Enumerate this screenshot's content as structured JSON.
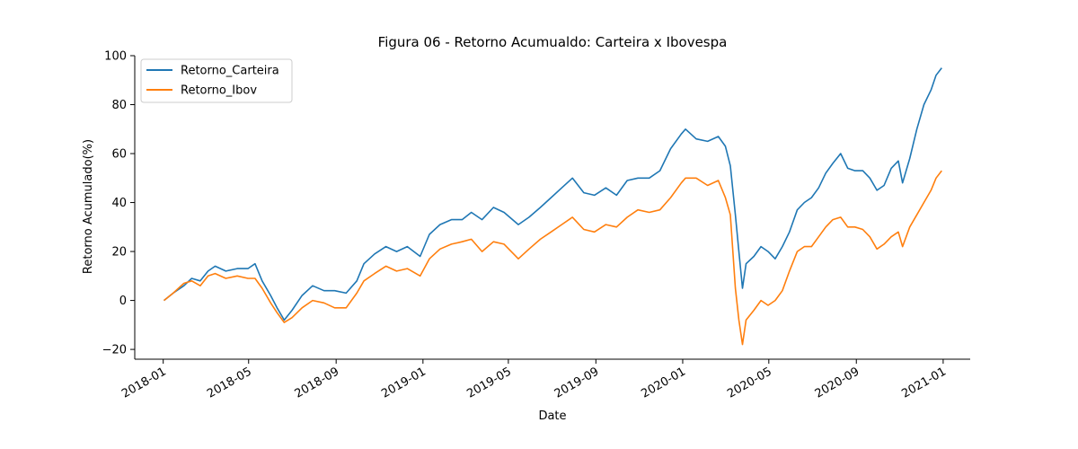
{
  "chart_data": {
    "type": "line",
    "title": "Figura 06 - Retorno Acumualdo: Carteira x Ibovespa",
    "xlabel": "Date",
    "ylabel": "Retorno Acumulado(%)",
    "xlim": [
      "2017-11-22",
      "2021-02-08"
    ],
    "ylim": [
      -24,
      100
    ],
    "xticks": [
      "2018-01",
      "2018-05",
      "2018-09",
      "2019-01",
      "2019-05",
      "2019-09",
      "2020-01",
      "2020-05",
      "2020-09",
      "2021-01"
    ],
    "yticks": [
      -20,
      0,
      20,
      40,
      60,
      80,
      100
    ],
    "grid": false,
    "legend": "top-left",
    "series": [
      {
        "name": "Retorno_Carteira",
        "color": "#1f77b4",
        "points": [
          [
            "2018-01-02",
            0
          ],
          [
            "2018-01-15",
            3
          ],
          [
            "2018-01-30",
            6
          ],
          [
            "2018-02-10",
            9
          ],
          [
            "2018-02-22",
            8
          ],
          [
            "2018-03-05",
            12
          ],
          [
            "2018-03-15",
            14
          ],
          [
            "2018-03-30",
            12
          ],
          [
            "2018-04-15",
            13
          ],
          [
            "2018-04-30",
            13
          ],
          [
            "2018-05-10",
            15
          ],
          [
            "2018-05-20",
            8
          ],
          [
            "2018-06-01",
            2
          ],
          [
            "2018-06-10",
            -3
          ],
          [
            "2018-06-20",
            -8
          ],
          [
            "2018-07-01",
            -4
          ],
          [
            "2018-07-15",
            2
          ],
          [
            "2018-07-30",
            6
          ],
          [
            "2018-08-15",
            4
          ],
          [
            "2018-08-30",
            4
          ],
          [
            "2018-09-15",
            3
          ],
          [
            "2018-09-30",
            8
          ],
          [
            "2018-10-10",
            15
          ],
          [
            "2018-10-25",
            19
          ],
          [
            "2018-11-10",
            22
          ],
          [
            "2018-11-25",
            20
          ],
          [
            "2018-12-10",
            22
          ],
          [
            "2018-12-28",
            18
          ],
          [
            "2019-01-10",
            27
          ],
          [
            "2019-01-25",
            31
          ],
          [
            "2019-02-10",
            33
          ],
          [
            "2019-02-25",
            33
          ],
          [
            "2019-03-10",
            36
          ],
          [
            "2019-03-25",
            33
          ],
          [
            "2019-04-10",
            38
          ],
          [
            "2019-04-25",
            36
          ],
          [
            "2019-05-15",
            31
          ],
          [
            "2019-05-30",
            34
          ],
          [
            "2019-06-15",
            38
          ],
          [
            "2019-06-30",
            42
          ],
          [
            "2019-07-15",
            46
          ],
          [
            "2019-07-30",
            50
          ],
          [
            "2019-08-15",
            44
          ],
          [
            "2019-08-30",
            43
          ],
          [
            "2019-09-15",
            46
          ],
          [
            "2019-09-30",
            43
          ],
          [
            "2019-10-15",
            49
          ],
          [
            "2019-10-30",
            50
          ],
          [
            "2019-11-15",
            50
          ],
          [
            "2019-11-30",
            53
          ],
          [
            "2019-12-15",
            62
          ],
          [
            "2019-12-30",
            68
          ],
          [
            "2020-01-05",
            70
          ],
          [
            "2020-01-20",
            66
          ],
          [
            "2020-02-05",
            65
          ],
          [
            "2020-02-20",
            67
          ],
          [
            "2020-03-01",
            63
          ],
          [
            "2020-03-08",
            55
          ],
          [
            "2020-03-15",
            35
          ],
          [
            "2020-03-20",
            20
          ],
          [
            "2020-03-25",
            5
          ],
          [
            "2020-03-30",
            15
          ],
          [
            "2020-04-10",
            18
          ],
          [
            "2020-04-20",
            22
          ],
          [
            "2020-04-30",
            20
          ],
          [
            "2020-05-10",
            17
          ],
          [
            "2020-05-20",
            22
          ],
          [
            "2020-05-30",
            28
          ],
          [
            "2020-06-10",
            37
          ],
          [
            "2020-06-20",
            40
          ],
          [
            "2020-06-30",
            42
          ],
          [
            "2020-07-10",
            46
          ],
          [
            "2020-07-20",
            52
          ],
          [
            "2020-07-30",
            56
          ],
          [
            "2020-08-10",
            60
          ],
          [
            "2020-08-20",
            54
          ],
          [
            "2020-08-30",
            53
          ],
          [
            "2020-09-10",
            53
          ],
          [
            "2020-09-20",
            50
          ],
          [
            "2020-09-30",
            45
          ],
          [
            "2020-10-10",
            47
          ],
          [
            "2020-10-20",
            54
          ],
          [
            "2020-10-30",
            57
          ],
          [
            "2020-11-05",
            48
          ],
          [
            "2020-11-15",
            58
          ],
          [
            "2020-11-25",
            70
          ],
          [
            "2020-12-05",
            80
          ],
          [
            "2020-12-15",
            86
          ],
          [
            "2020-12-22",
            92
          ],
          [
            "2020-12-30",
            95
          ]
        ]
      },
      {
        "name": "Retorno_Ibov",
        "color": "#ff7f0e",
        "points": [
          [
            "2018-01-02",
            0
          ],
          [
            "2018-01-15",
            3
          ],
          [
            "2018-01-30",
            7
          ],
          [
            "2018-02-10",
            8
          ],
          [
            "2018-02-22",
            6
          ],
          [
            "2018-03-05",
            10
          ],
          [
            "2018-03-15",
            11
          ],
          [
            "2018-03-30",
            9
          ],
          [
            "2018-04-15",
            10
          ],
          [
            "2018-04-30",
            9
          ],
          [
            "2018-05-10",
            9
          ],
          [
            "2018-05-20",
            5
          ],
          [
            "2018-06-01",
            -1
          ],
          [
            "2018-06-10",
            -5
          ],
          [
            "2018-06-20",
            -9
          ],
          [
            "2018-07-01",
            -7
          ],
          [
            "2018-07-15",
            -3
          ],
          [
            "2018-07-30",
            0
          ],
          [
            "2018-08-15",
            -1
          ],
          [
            "2018-08-30",
            -3
          ],
          [
            "2018-09-15",
            -3
          ],
          [
            "2018-09-30",
            3
          ],
          [
            "2018-10-10",
            8
          ],
          [
            "2018-10-25",
            11
          ],
          [
            "2018-11-10",
            14
          ],
          [
            "2018-11-25",
            12
          ],
          [
            "2018-12-10",
            13
          ],
          [
            "2018-12-28",
            10
          ],
          [
            "2019-01-10",
            17
          ],
          [
            "2019-01-25",
            21
          ],
          [
            "2019-02-10",
            23
          ],
          [
            "2019-02-25",
            24
          ],
          [
            "2019-03-10",
            25
          ],
          [
            "2019-03-25",
            20
          ],
          [
            "2019-04-10",
            24
          ],
          [
            "2019-04-25",
            23
          ],
          [
            "2019-05-15",
            17
          ],
          [
            "2019-05-30",
            21
          ],
          [
            "2019-06-15",
            25
          ],
          [
            "2019-06-30",
            28
          ],
          [
            "2019-07-15",
            31
          ],
          [
            "2019-07-30",
            34
          ],
          [
            "2019-08-15",
            29
          ],
          [
            "2019-08-30",
            28
          ],
          [
            "2019-09-15",
            31
          ],
          [
            "2019-09-30",
            30
          ],
          [
            "2019-10-15",
            34
          ],
          [
            "2019-10-30",
            37
          ],
          [
            "2019-11-15",
            36
          ],
          [
            "2019-11-30",
            37
          ],
          [
            "2019-12-15",
            42
          ],
          [
            "2019-12-30",
            48
          ],
          [
            "2020-01-05",
            50
          ],
          [
            "2020-01-20",
            50
          ],
          [
            "2020-02-05",
            47
          ],
          [
            "2020-02-20",
            49
          ],
          [
            "2020-03-01",
            42
          ],
          [
            "2020-03-08",
            35
          ],
          [
            "2020-03-15",
            5
          ],
          [
            "2020-03-20",
            -8
          ],
          [
            "2020-03-25",
            -18
          ],
          [
            "2020-03-30",
            -8
          ],
          [
            "2020-04-10",
            -4
          ],
          [
            "2020-04-20",
            0
          ],
          [
            "2020-04-30",
            -2
          ],
          [
            "2020-05-10",
            0
          ],
          [
            "2020-05-20",
            4
          ],
          [
            "2020-05-30",
            12
          ],
          [
            "2020-06-10",
            20
          ],
          [
            "2020-06-20",
            22
          ],
          [
            "2020-06-30",
            22
          ],
          [
            "2020-07-10",
            26
          ],
          [
            "2020-07-20",
            30
          ],
          [
            "2020-07-30",
            33
          ],
          [
            "2020-08-10",
            34
          ],
          [
            "2020-08-20",
            30
          ],
          [
            "2020-08-30",
            30
          ],
          [
            "2020-09-10",
            29
          ],
          [
            "2020-09-20",
            26
          ],
          [
            "2020-09-30",
            21
          ],
          [
            "2020-10-10",
            23
          ],
          [
            "2020-10-20",
            26
          ],
          [
            "2020-10-30",
            28
          ],
          [
            "2020-11-05",
            22
          ],
          [
            "2020-11-15",
            30
          ],
          [
            "2020-11-25",
            35
          ],
          [
            "2020-12-05",
            40
          ],
          [
            "2020-12-15",
            45
          ],
          [
            "2020-12-22",
            50
          ],
          [
            "2020-12-30",
            53
          ]
        ]
      }
    ]
  }
}
